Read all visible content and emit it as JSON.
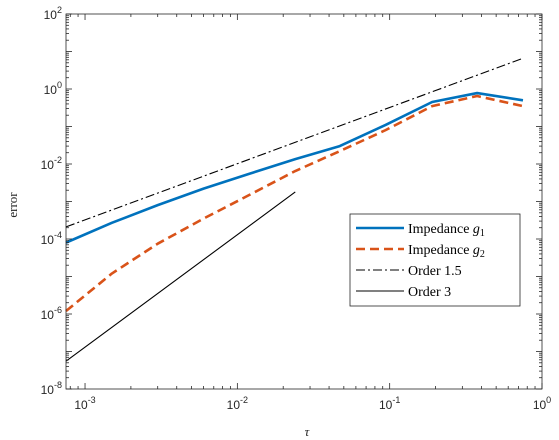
{
  "chart_data": {
    "type": "line",
    "title": "",
    "xlabel": "τ",
    "ylabel": "error",
    "xscale": "log",
    "yscale": "log",
    "xlim": [
      0.00075,
      1
    ],
    "ylim": [
      1e-08,
      100
    ],
    "grid": false,
    "x_ticks": [
      {
        "value": 0.001,
        "base": "10",
        "exp": "-3"
      },
      {
        "value": 0.01,
        "base": "10",
        "exp": "-2"
      },
      {
        "value": 0.1,
        "base": "10",
        "exp": "-1"
      },
      {
        "value": 1,
        "base": "10",
        "exp": "0"
      }
    ],
    "y_ticks": [
      {
        "value": 1e-08,
        "base": "10",
        "exp": "-8"
      },
      {
        "value": 1e-06,
        "base": "10",
        "exp": "-6"
      },
      {
        "value": 0.0001,
        "base": "10",
        "exp": "-4"
      },
      {
        "value": 0.01,
        "base": "10",
        "exp": "-2"
      },
      {
        "value": 1,
        "base": "10",
        "exp": "0"
      },
      {
        "value": 100,
        "base": "10",
        "exp": "2"
      }
    ],
    "legend": {
      "placement": "center-right",
      "entries": [
        {
          "text": "Impedance ",
          "sub": "g",
          "subscript": "1"
        },
        {
          "text": "Impedance ",
          "sub": "g",
          "subscript": "2"
        },
        {
          "text": "Order 1.5",
          "sub": "",
          "subscript": ""
        },
        {
          "text": "Order 3",
          "sub": "",
          "subscript": ""
        }
      ]
    },
    "series": [
      {
        "name": "Impedance g1",
        "color": "#0072BD",
        "dash": "solid",
        "x": [
          0.00075,
          0.0015,
          0.003,
          0.006,
          0.012,
          0.024,
          0.047,
          0.094,
          0.19,
          0.375,
          0.75
        ],
        "y": [
          8e-05,
          0.00027,
          0.0008,
          0.0022,
          0.0055,
          0.0135,
          0.03,
          0.11,
          0.45,
          0.78,
          0.5
        ]
      },
      {
        "name": "Impedance g2",
        "color": "#D95319",
        "dash": "dashed",
        "x": [
          0.00075,
          0.0015,
          0.003,
          0.006,
          0.012,
          0.024,
          0.047,
          0.094,
          0.19,
          0.375,
          0.75
        ],
        "y": [
          1.2e-06,
          1.2e-05,
          7.5e-05,
          0.00035,
          0.0015,
          0.0065,
          0.022,
          0.08,
          0.35,
          0.65,
          0.35
        ]
      },
      {
        "name": "Order 1.5",
        "color": "#000000",
        "dash": "dashdot",
        "x": [
          0.00075,
          0.75
        ],
        "y": [
          0.00021,
          6.6
        ]
      },
      {
        "name": "Order 3",
        "color": "#000000",
        "dash": "solid",
        "x": [
          0.00075,
          0.024
        ],
        "y": [
          5.5e-08,
          0.0018
        ]
      }
    ]
  }
}
